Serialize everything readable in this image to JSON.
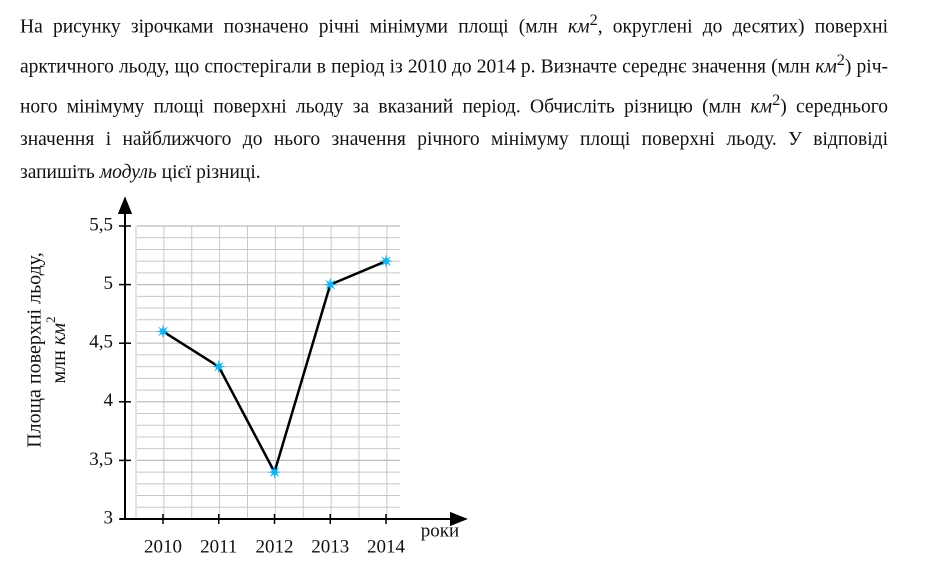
{
  "problem": {
    "text": [
      "На рисунку зірочками позначено річні мінімуми площі (млн ",
      "км",
      "2",
      ", округлені до десятих) поверхні арктичного льоду, що спостерігали в період із 2010 до 2014 р. Визначте середнє значення (млн ",
      "км",
      "2",
      ") річ-ного мінімуму площі поверхні льоду за вказаний період. Обчисліть різницю (млн ",
      "км",
      "2",
      ") середнього значення і найближчого до нього значення річного мінімуму площі поверхні льоду. У відповіді запишіть ",
      "модуль",
      " цієї різниці."
    ]
  },
  "chart_data": {
    "type": "line",
    "y_label": "Площа поверхні льоду,",
    "y_label_unit": [
      "млн ",
      "км",
      "2"
    ],
    "x_label": "роки",
    "categories": [
      "2010",
      "2011",
      "2012",
      "2013",
      "2014"
    ],
    "values": [
      4.6,
      4.3,
      3.4,
      5.0,
      5.2
    ],
    "line_color": "#000000",
    "marker_color": "#1ab0e8",
    "ylim": [
      3,
      5.5
    ],
    "yticks": [
      3,
      {
        "value": 3.5,
        "label": "3,5"
      },
      4,
      {
        "value": 4.5,
        "label": "4,5"
      },
      5,
      {
        "value": 5.5,
        "label": "5,5"
      }
    ],
    "minor_yticks": [
      3.1,
      3.2,
      3.3,
      3.4,
      3.6,
      3.7,
      3.8,
      3.9,
      4.1,
      4.2,
      4.3,
      4.4,
      4.6,
      4.7,
      4.8,
      4.9,
      5.1,
      5.2,
      5.3,
      5.4
    ],
    "grid": true
  }
}
